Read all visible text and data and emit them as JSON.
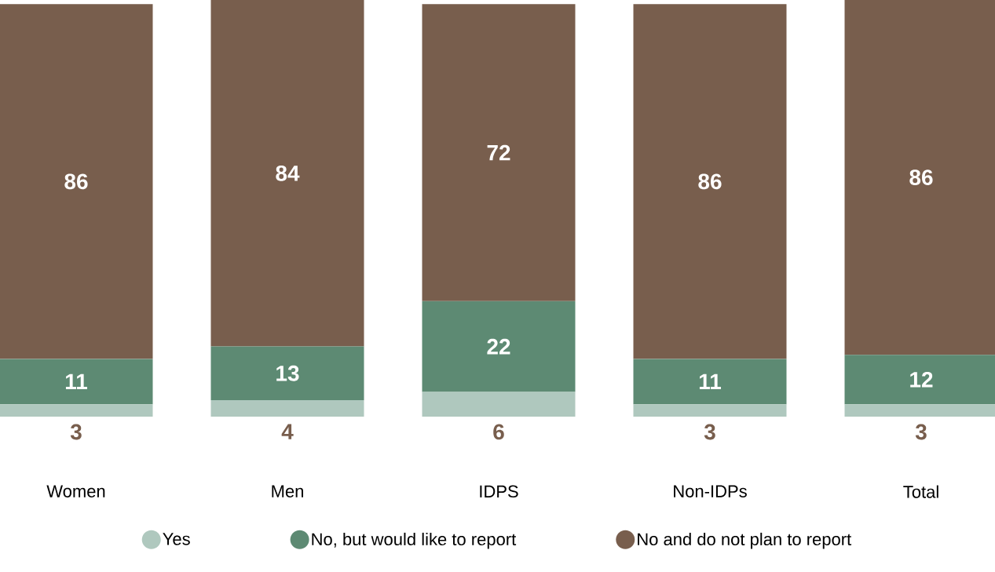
{
  "chart_data": {
    "type": "bar",
    "stacked": true,
    "data_labels": true,
    "legend": "bottom",
    "categories": [
      "Women",
      "Men",
      "IDPS",
      "Non-IDPs",
      "Total"
    ],
    "series": [
      {
        "name": "Yes",
        "color": "#afc8be",
        "values": [
          3,
          4,
          6,
          3,
          3
        ]
      },
      {
        "name": "No, but would like to report",
        "color": "#5d8a73",
        "values": [
          11,
          13,
          22,
          11,
          12
        ]
      },
      {
        "name": "No and do not plan to report",
        "color": "#785e4d",
        "values": [
          86,
          84,
          72,
          86,
          86
        ]
      }
    ]
  }
}
